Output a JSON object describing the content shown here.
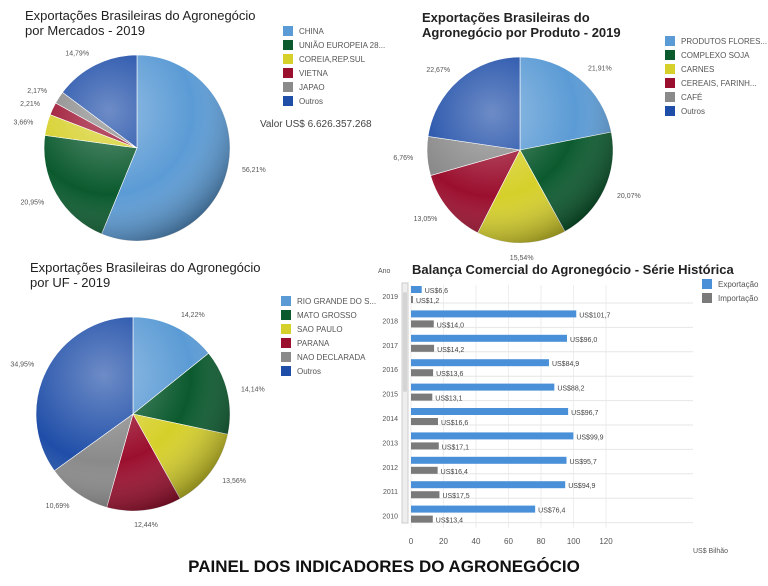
{
  "chart_data": [
    {
      "type": "pie",
      "title": "Exportações Brasileiras do Agronegócio por Mercados - 2019",
      "labels": [
        "CHINA",
        "UNIÃO EUROPEIA 28...",
        "COREIA,REP.SUL",
        "VIETNA",
        "JAPAO",
        "Outros"
      ],
      "values": [
        56.21,
        20.95,
        3.66,
        2.21,
        2.17,
        14.79
      ],
      "value_labels": [
        "56,21%",
        "20,95%",
        "3,66%",
        "2,21%",
        "2,17%",
        "14,79%"
      ],
      "note": "Valor US$ 6.626.357.268"
    },
    {
      "type": "pie",
      "title": "Exportações Brasileiras do Agronegócio por Produto - 2019",
      "labels": [
        "PRODUTOS FLORES...",
        "COMPLEXO SOJA",
        "CARNES",
        "CEREAIS, FARINH...",
        "CAFÉ",
        "Outros"
      ],
      "values": [
        21.91,
        20.07,
        15.54,
        13.05,
        6.76,
        22.67
      ],
      "value_labels": [
        "21,91%",
        "20,07%",
        "15,54%",
        "13,05%",
        "6,76%",
        "22,67%"
      ]
    },
    {
      "type": "pie",
      "title": "Exportações Brasileiras do Agronegócio por UF - 2019",
      "labels": [
        "RIO GRANDE DO S...",
        "MATO GROSSO",
        "SAO PAULO",
        "PARANA",
        "NAO DECLARADA",
        "Outros"
      ],
      "values": [
        14.22,
        14.14,
        13.56,
        12.44,
        10.69,
        34.95
      ],
      "value_labels": [
        "14,22%",
        "14,14%",
        "13,56%",
        "12,44%",
        "10,69%",
        "34,95%"
      ]
    },
    {
      "type": "bar",
      "orientation": "horizontal",
      "title": "Balança Comercial do Agronegócio - Série Histórica",
      "ylabel": "Ano",
      "xlabel": "US$ Bilhão",
      "xlim": [
        0,
        120
      ],
      "xticks": [
        0,
        20,
        40,
        60,
        80,
        100,
        120
      ],
      "categories": [
        "2019",
        "2018",
        "2017",
        "2016",
        "2015",
        "2014",
        "2013",
        "2012",
        "2011",
        "2010"
      ],
      "series": [
        {
          "name": "Exportação",
          "values": [
            6.6,
            101.7,
            96.0,
            84.9,
            88.2,
            96.7,
            99.9,
            95.7,
            94.9,
            76.4
          ],
          "value_labels": [
            "US$6,6",
            "US$101,7",
            "US$96,0",
            "US$84,9",
            "US$88,2",
            "US$96,7",
            "US$99,9",
            "US$95,7",
            "US$94,9",
            "US$76,4"
          ]
        },
        {
          "name": "Importação",
          "values": [
            1.2,
            14.0,
            14.2,
            13.6,
            13.1,
            16.6,
            17.1,
            16.4,
            17.5,
            13.4
          ],
          "value_labels": [
            "US$1,2",
            "US$14,0",
            "US$14,2",
            "US$13,6",
            "US$13,1",
            "US$16,6",
            "US$17,1",
            "US$16,4",
            "US$17,5",
            "US$13,4"
          ]
        }
      ],
      "legend": "top-right"
    }
  ],
  "colors": {
    "pie": [
      "#5b9bd5",
      "#0b5a2e",
      "#d6d02a",
      "#9b0f2e",
      "#8a8a8a",
      "#1f4ea8"
    ],
    "export": "#4a90d9",
    "import": "#7a7a7a"
  },
  "footer": "PAINEL DOS INDICADORES DO AGRONEGÓCIO"
}
